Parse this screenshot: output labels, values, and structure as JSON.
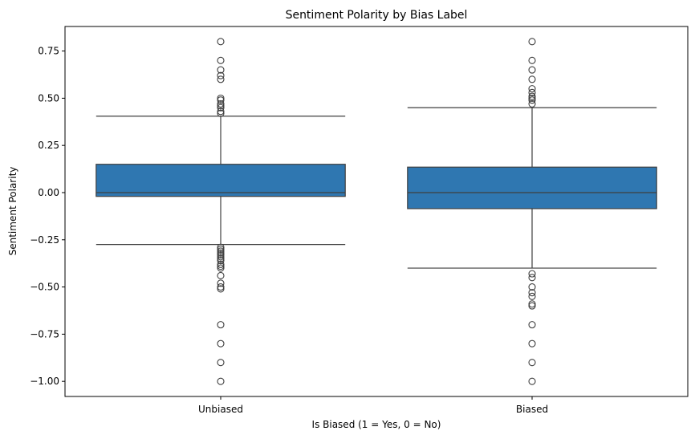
{
  "chart_data": {
    "type": "box",
    "title": "Sentiment Polarity by Bias Label",
    "xlabel": "Is Biased (1 = Yes, 0 = No)",
    "ylabel": "Sentiment Polarity",
    "ylim": [
      -1.08,
      0.88
    ],
    "yticks": [
      -1.0,
      -0.75,
      -0.5,
      -0.25,
      0.0,
      0.25,
      0.5,
      0.75
    ],
    "ytick_labels": [
      "−1.00",
      "−0.75",
      "−0.50",
      "−0.25",
      "0.00",
      "0.25",
      "0.50",
      "0.75"
    ],
    "categories": [
      "Unbiased",
      "Biased"
    ],
    "box_color": "#2f77b1",
    "line_color": "#3f3f3f",
    "boxes": [
      {
        "label": "Unbiased",
        "q1": -0.02,
        "median": 0.0,
        "q3": 0.15,
        "whisker_low": -0.275,
        "whisker_high": 0.405,
        "outliers": [
          0.8,
          0.7,
          0.65,
          0.62,
          0.6,
          0.5,
          0.49,
          0.47,
          0.46,
          0.45,
          0.43,
          0.42,
          -0.29,
          -0.3,
          -0.31,
          -0.32,
          -0.33,
          -0.34,
          -0.35,
          -0.36,
          -0.38,
          -0.39,
          -0.4,
          -0.44,
          -0.48,
          -0.5,
          -0.51,
          -0.7,
          -0.8,
          -0.9,
          -1.0
        ]
      },
      {
        "label": "Biased",
        "q1": -0.085,
        "median": 0.0,
        "q3": 0.135,
        "whisker_low": -0.4,
        "whisker_high": 0.45,
        "outliers": [
          0.8,
          0.7,
          0.65,
          0.6,
          0.55,
          0.53,
          0.51,
          0.5,
          0.49,
          0.47,
          -0.43,
          -0.45,
          -0.5,
          -0.53,
          -0.55,
          -0.59,
          -0.6,
          -0.7,
          -0.8,
          -0.9,
          -1.0
        ]
      }
    ]
  }
}
